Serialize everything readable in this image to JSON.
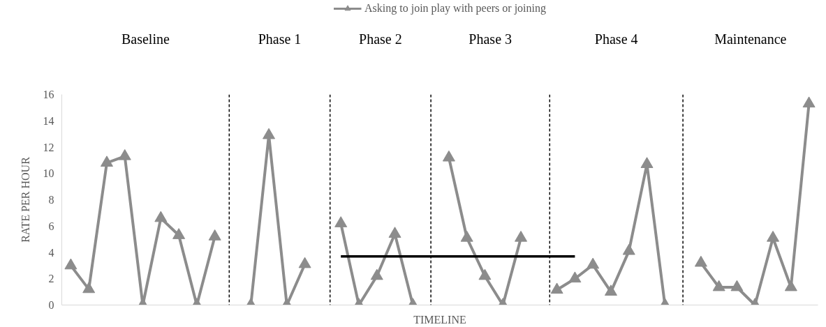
{
  "chart_data": {
    "type": "line",
    "xlabel": "TIMELINE",
    "ylabel": "RATE PER HOUR",
    "categories": [
      null,
      null,
      null,
      null,
      null,
      null,
      null,
      null,
      null,
      null,
      null,
      null,
      null,
      null,
      null,
      null,
      null,
      null,
      null,
      null,
      null,
      null,
      null,
      null,
      null,
      null,
      null,
      null,
      null,
      null,
      null,
      null,
      null,
      null,
      null,
      null,
      null,
      null,
      null,
      null,
      null,
      null
    ],
    "series": [
      {
        "name": "Asking to join play with peers or joining",
        "color": "#8c8c8c",
        "marker": "triangle",
        "values": [
          3.0,
          1.2,
          10.8,
          11.3,
          0,
          6.6,
          5.3,
          0,
          5.2,
          null,
          0,
          12.9,
          0,
          3.1,
          null,
          6.2,
          0,
          2.2,
          5.4,
          0,
          null,
          11.2,
          5.1,
          2.2,
          0,
          5.1,
          null,
          1.15,
          2.0,
          3.05,
          1.0,
          4.1,
          10.7,
          0,
          null,
          3.2,
          1.35,
          1.35,
          0,
          5.1,
          1.35,
          15.3
        ]
      },
      {
        "type": "line",
        "color": "#000000",
        "marker": "none",
        "values": [
          null,
          null,
          null,
          null,
          null,
          null,
          null,
          null,
          null,
          null,
          null,
          null,
          null,
          null,
          null,
          3.7,
          3.7,
          3.7,
          3.7,
          3.7,
          3.7,
          3.7,
          3.7,
          3.7,
          3.7,
          3.7,
          3.7,
          3.7,
          3.7,
          null,
          null,
          null,
          null,
          null,
          null,
          null,
          null,
          null,
          null,
          null,
          null,
          null
        ]
      }
    ],
    "annotations": [
      "Baseline",
      "Phase 1",
      "Phase 2",
      "Phase 3",
      "Phase 4",
      "Maintenance"
    ],
    "ylim": [
      0,
      16
    ],
    "yticks": [
      0,
      2,
      4,
      6,
      8,
      10,
      12,
      14,
      16
    ],
    "grid": false,
    "legend": "top"
  }
}
